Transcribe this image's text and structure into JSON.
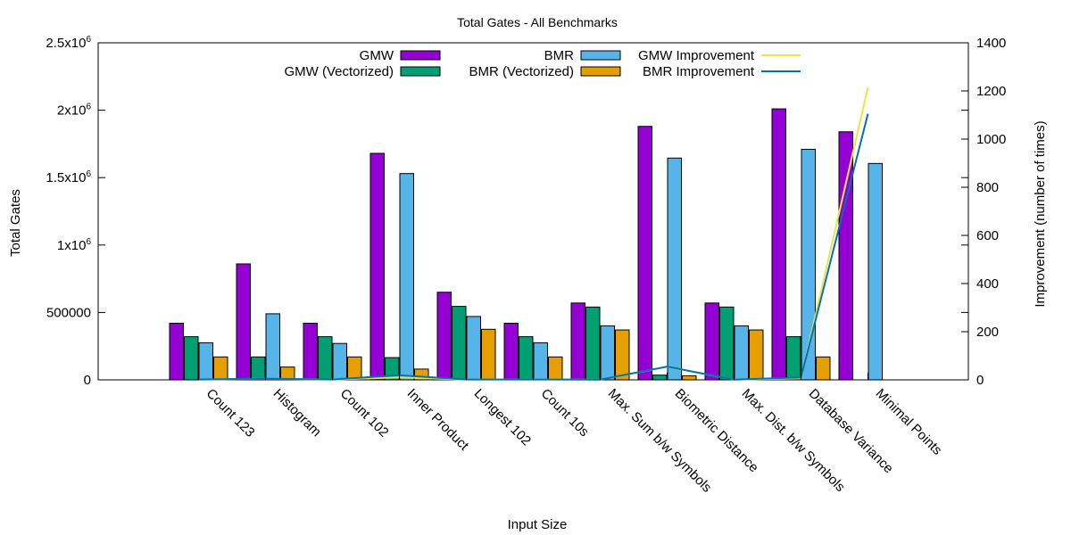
{
  "chart_data": {
    "type": "bar",
    "title": "Total Gates - All Benchmarks",
    "xlabel": "Input Size",
    "ylabel": "Total Gates",
    "y2label": "Improvement (number of times)",
    "ylim": [
      0,
      2500000
    ],
    "y2lim": [
      0,
      1400
    ],
    "yticks": [
      {
        "value": 0,
        "label": "0"
      },
      {
        "value": 500000,
        "label": "500000"
      },
      {
        "value": 1000000,
        "label": "1x10",
        "exp": "6"
      },
      {
        "value": 1500000,
        "label": "1.5x10",
        "exp": "6"
      },
      {
        "value": 2000000,
        "label": "2x10",
        "exp": "6"
      },
      {
        "value": 2500000,
        "label": "2.5x10",
        "exp": "6"
      }
    ],
    "y2ticks": [
      0,
      200,
      400,
      600,
      800,
      1000,
      1200,
      1400
    ],
    "categories": [
      "Count 123",
      "Histogram",
      "Count 102",
      "Inner Product",
      "Longest 102",
      "Count 10s",
      "Max. Sum b/w Symbols",
      "Biometric Distance",
      "Max. Dist. b/w Symbols",
      "Database Variance",
      "Minimal Points"
    ],
    "series": [
      {
        "name": "GMW",
        "color": "#9400d3",
        "values": [
          420000,
          860000,
          420000,
          1680000,
          650000,
          420000,
          570000,
          1880000,
          570000,
          2010000,
          1840000
        ]
      },
      {
        "name": "GMW (Vectorized)",
        "color": "#009e73",
        "values": [
          320000,
          170000,
          320000,
          165000,
          545000,
          320000,
          540000,
          35000,
          540000,
          320000,
          0
        ]
      },
      {
        "name": "BMR",
        "color": "#56b4e9",
        "values": [
          275000,
          490000,
          270000,
          1530000,
          470000,
          275000,
          400000,
          1645000,
          400000,
          1710000,
          1605000
        ]
      },
      {
        "name": "BMR (Vectorized)",
        "color": "#e69f00",
        "values": [
          170000,
          95000,
          170000,
          80000,
          375000,
          170000,
          370000,
          30000,
          370000,
          170000,
          0
        ]
      }
    ],
    "lines": [
      {
        "name": "GMW Improvement",
        "color": "#f0e442",
        "values": [
          1.3,
          5,
          1.3,
          10,
          1.2,
          1.3,
          1.05,
          54,
          1.05,
          6.3,
          1215
        ]
      },
      {
        "name": "BMR Improvement",
        "color": "#0072b2",
        "values": [
          1.6,
          5,
          1.6,
          19,
          1.25,
          1.6,
          1.08,
          55,
          1.08,
          10,
          1105
        ]
      }
    ],
    "legend_position": "top-center"
  }
}
